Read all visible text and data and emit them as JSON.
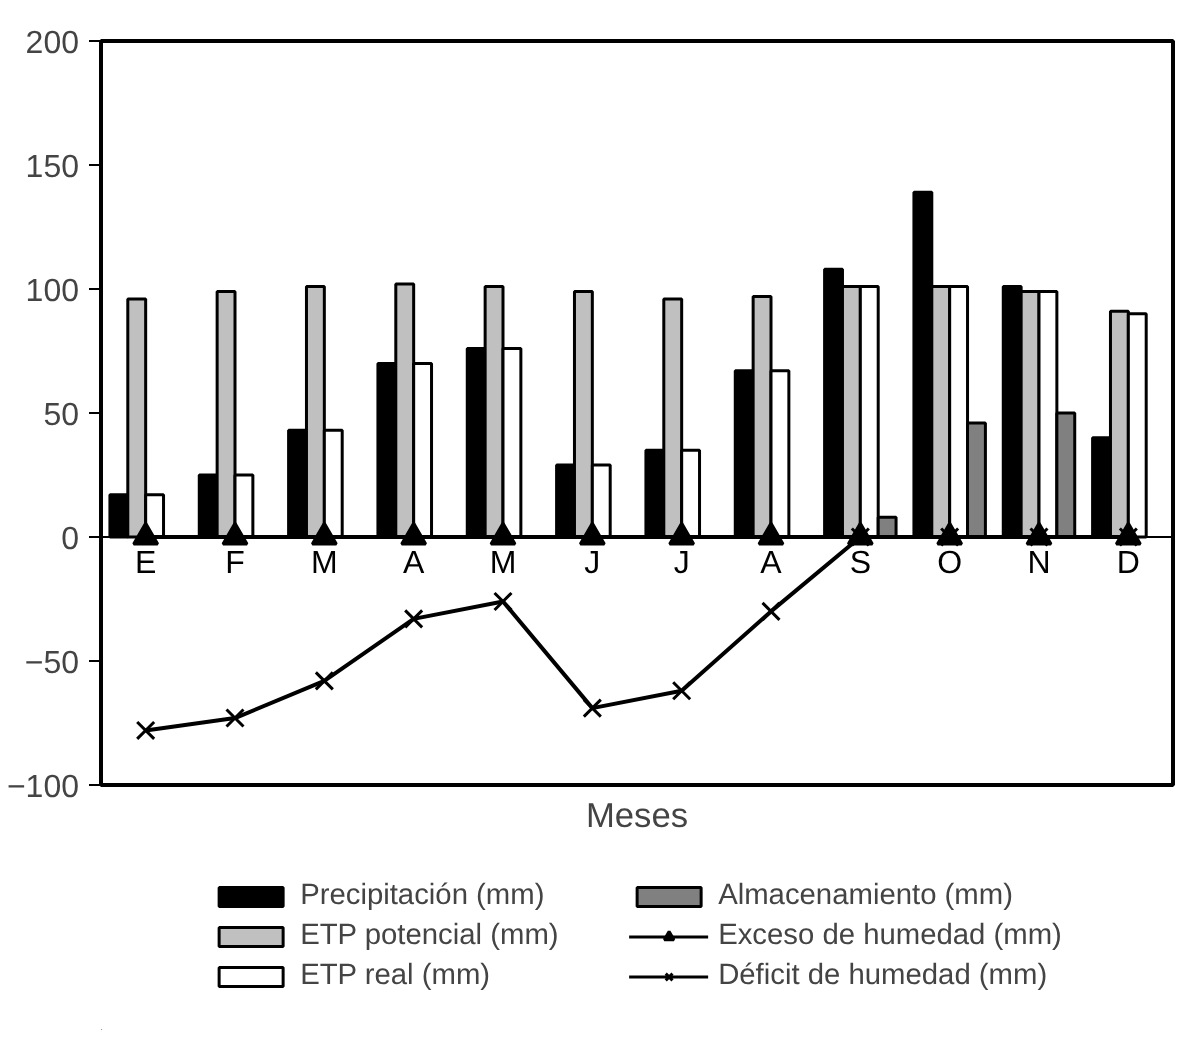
{
  "chart_data": {
    "type": "bar",
    "xlabel": "Meses",
    "categories": [
      "E",
      "F",
      "M",
      "A",
      "M",
      "J",
      "J",
      "A",
      "S",
      "O",
      "N",
      "D"
    ],
    "series": [
      {
        "name": "Precipitación (mm)",
        "color": "#000000",
        "values": [
          17,
          25,
          43,
          70,
          76,
          29,
          35,
          67,
          108,
          139,
          101,
          40
        ]
      },
      {
        "name": "ETP potencial (mm)",
        "color": "#c0c0c0",
        "values": [
          96,
          99,
          101,
          102,
          101,
          99,
          96,
          97,
          101,
          101,
          99,
          91
        ]
      },
      {
        "name": "ETP real (mm)",
        "color": "#ffffff",
        "values": [
          17,
          25,
          43,
          70,
          76,
          29,
          35,
          67,
          101,
          101,
          99,
          90
        ]
      },
      {
        "name": "Almacenamiento (mm)",
        "color": "#808080",
        "values": [
          null,
          null,
          null,
          null,
          null,
          null,
          null,
          null,
          8,
          46,
          50,
          null
        ]
      },
      {
        "name": "Exceso de humedad (mm)",
        "type": "line",
        "marker": "triangle",
        "color": "#000000",
        "values": [
          0,
          0,
          0,
          0,
          0,
          0,
          0,
          0,
          0,
          0,
          0,
          0
        ]
      },
      {
        "name": "Déficit de humedad (mm)",
        "type": "line",
        "marker": "cross",
        "color": "#000000",
        "values": [
          -78,
          -73,
          -58,
          -33,
          -26,
          -69,
          -62,
          -30,
          0,
          0,
          0,
          0
        ]
      }
    ],
    "ylim": [
      -100,
      200
    ],
    "yticks": [
      -100,
      -50,
      0,
      50,
      100,
      150,
      200
    ],
    "grid": false,
    "legend": "bottom"
  }
}
